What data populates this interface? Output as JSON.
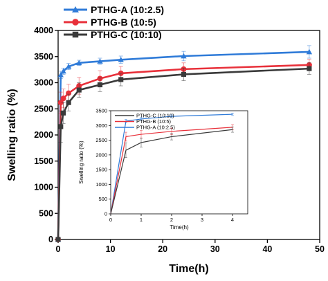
{
  "chart_data": [
    {
      "type": "line",
      "xlabel": "Time(h)",
      "ylabel": "Swelling ratio (%)",
      "xlim": [
        0,
        50
      ],
      "ylim": [
        0,
        4000
      ],
      "xticks": [
        "0",
        "10",
        "20",
        "30",
        "40",
        "50"
      ],
      "yticks": [
        "0",
        "500",
        "1000",
        "1500",
        "2000",
        "2500",
        "3000",
        "3500",
        "4000"
      ],
      "legend_position": "top-left",
      "series": [
        {
          "name": "PTHG-A (10:2.5)",
          "color": "#2f7bd8",
          "marker": "triangle",
          "x": [
            0,
            0.5,
            1,
            2,
            4,
            8,
            12,
            24,
            48
          ],
          "y": [
            0,
            3150,
            3220,
            3310,
            3380,
            3410,
            3440,
            3510,
            3590
          ],
          "error": [
            0,
            70,
            60,
            60,
            50,
            60,
            70,
            90,
            120
          ]
        },
        {
          "name": "PTHG-B (10:5)",
          "color": "#e8303a",
          "marker": "circle",
          "x": [
            0,
            0.5,
            1,
            2,
            4,
            8,
            12,
            24,
            48
          ],
          "y": [
            0,
            2620,
            2700,
            2800,
            2940,
            3080,
            3180,
            3260,
            3340
          ],
          "error": [
            0,
            200,
            180,
            170,
            160,
            150,
            130,
            120,
            110
          ]
        },
        {
          "name": "PTHG-C (10:10)",
          "color": "#3a3a3a",
          "marker": "square",
          "x": [
            0,
            0.5,
            1,
            2,
            4,
            8,
            12,
            24,
            48
          ],
          "y": [
            0,
            2160,
            2420,
            2620,
            2860,
            2960,
            3060,
            3160,
            3270
          ],
          "error": [
            0,
            300,
            200,
            160,
            140,
            130,
            120,
            120,
            110
          ]
        }
      ]
    },
    {
      "type": "line",
      "xlabel": "Time(h)",
      "ylabel": "Swelling ratio (%)",
      "xlim": [
        0,
        4.5
      ],
      "ylim": [
        0,
        3500
      ],
      "xticks": [
        "0",
        "1",
        "2",
        "3",
        "4"
      ],
      "yticks": [
        "0",
        "500",
        "1000",
        "1500",
        "2000",
        "2500",
        "3000",
        "3500"
      ],
      "legend_position": "top-left",
      "legend_order": [
        "PTHG-C (10:10)",
        "PTHG-B (10:5)",
        "PTHG-A (10:2.5)"
      ],
      "series": [
        {
          "name": "PTHG-A (10:2.5)",
          "color": "#2f7bd8",
          "x": [
            0,
            0.5,
            1,
            2,
            4
          ],
          "y": [
            0,
            3150,
            3220,
            3310,
            3380
          ],
          "error": [
            0,
            60,
            50,
            50,
            40
          ]
        },
        {
          "name": "PTHG-B (10:5)",
          "color": "#e8303a",
          "x": [
            0,
            0.5,
            1,
            2,
            4
          ],
          "y": [
            0,
            2620,
            2700,
            2800,
            2940
          ],
          "error": [
            0,
            150,
            130,
            110,
            90
          ]
        },
        {
          "name": "PTHG-C (10:10)",
          "color": "#3a3a3a",
          "x": [
            0,
            0.5,
            1,
            2,
            4
          ],
          "y": [
            0,
            2160,
            2420,
            2620,
            2860
          ],
          "error": [
            0,
            250,
            150,
            110,
            90
          ]
        }
      ]
    }
  ]
}
